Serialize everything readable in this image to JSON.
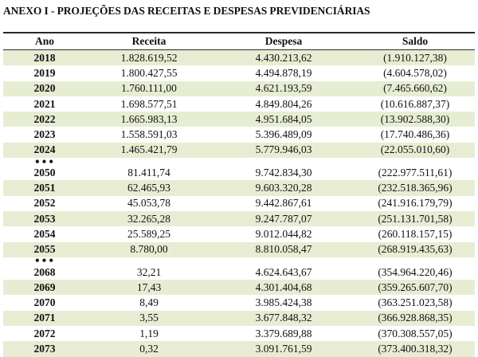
{
  "title": "ANEXO I - PROJEÇÕES DAS RECEITAS E DESPESAS PREVIDENCIÁRIAS",
  "headers": {
    "ano": "Ano",
    "receita": "Receita",
    "despesa": "Despesa",
    "saldo": "Saldo"
  },
  "separator": "•••",
  "groups": [
    [
      {
        "ano": "2018",
        "receita": "1.828.619,52",
        "despesa": "4.430.213,62",
        "saldo": "(1.910.127,38)"
      },
      {
        "ano": "2019",
        "receita": "1.800.427,55",
        "despesa": "4.494.878,19",
        "saldo": "(4.604.578,02)"
      },
      {
        "ano": "2020",
        "receita": "1.760.111,00",
        "despesa": "4.621.193,59",
        "saldo": "(7.465.660,62)"
      },
      {
        "ano": "2021",
        "receita": "1.698.577,51",
        "despesa": "4.849.804,26",
        "saldo": "(10.616.887,37)"
      },
      {
        "ano": "2022",
        "receita": "1.665.983,13",
        "despesa": "4.951.684,05",
        "saldo": "(13.902.588,30)"
      },
      {
        "ano": "2023",
        "receita": "1.558.591,03",
        "despesa": "5.396.489,09",
        "saldo": "(17.740.486,36)"
      },
      {
        "ano": "2024",
        "receita": "1.465.421,79",
        "despesa": "5.779.946,03",
        "saldo": "(22.055.010,60)"
      }
    ],
    [
      {
        "ano": "2050",
        "receita": "81.411,74",
        "despesa": "9.742.834,30",
        "saldo": "(222.977.511,61)"
      },
      {
        "ano": "2051",
        "receita": "62.465,93",
        "despesa": "9.603.320,28",
        "saldo": "(232.518.365,96)"
      },
      {
        "ano": "2052",
        "receita": "45.053,78",
        "despesa": "9.442.867,61",
        "saldo": "(241.916.179,79)"
      },
      {
        "ano": "2053",
        "receita": "32.265,28",
        "despesa": "9.247.787,07",
        "saldo": "(251.131.701,58)"
      },
      {
        "ano": "2054",
        "receita": "25.589,25",
        "despesa": "9.012.044,82",
        "saldo": "(260.118.157,15)"
      },
      {
        "ano": "2055",
        "receita": "8.780,00",
        "despesa": "8.810.058,47",
        "saldo": "(268.919.435,63)"
      }
    ],
    [
      {
        "ano": "2068",
        "receita": "32,21",
        "despesa": "4.624.643,67",
        "saldo": "(354.964.220,46)"
      },
      {
        "ano": "2069",
        "receita": "17,43",
        "despesa": "4.301.404,68",
        "saldo": "(359.265.607,70)"
      },
      {
        "ano": "2070",
        "receita": "8,49",
        "despesa": "3.985.424,38",
        "saldo": "(363.251.023,58)"
      },
      {
        "ano": "2071",
        "receita": "3,55",
        "despesa": "3.677.848,32",
        "saldo": "(366.928.868,35)"
      },
      {
        "ano": "2072",
        "receita": "1,19",
        "despesa": "3.379.689,88",
        "saldo": "(370.308.557,05)"
      },
      {
        "ano": "2073",
        "receita": "0,32",
        "despesa": "3.091.761,59",
        "saldo": "(373.400.318,32)"
      }
    ]
  ]
}
